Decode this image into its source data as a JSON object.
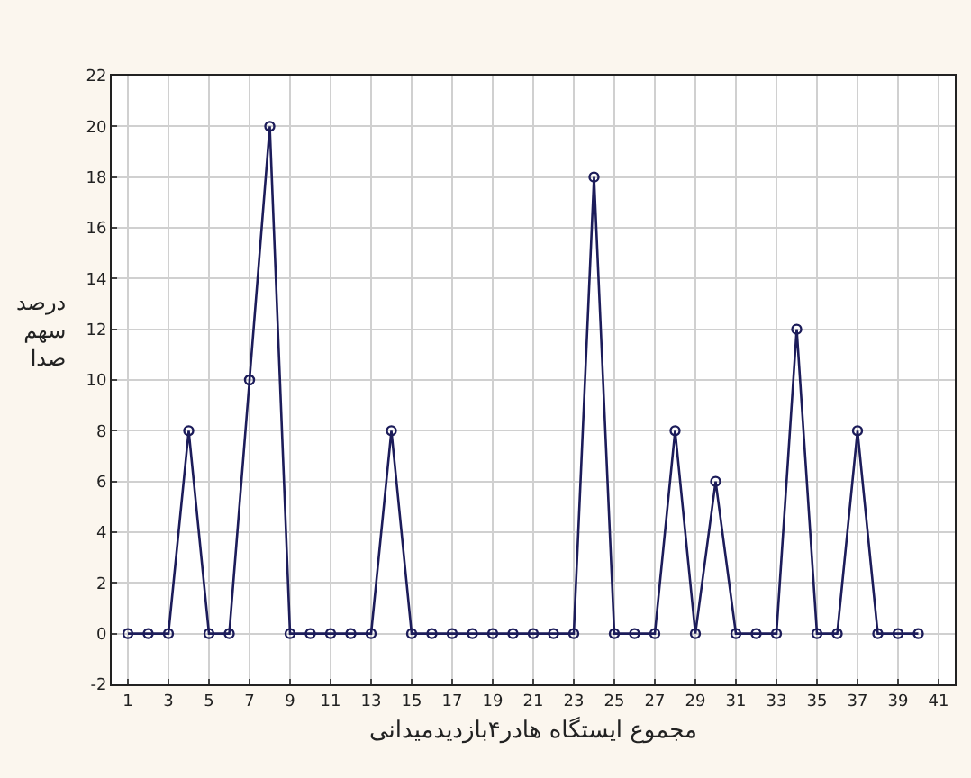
{
  "chart_data": {
    "type": "line",
    "xlabel": "مجموع ایستگاه هادر۴بازدیدمیدانی",
    "ylabel": "درصد سهم صدا",
    "x": [
      1,
      2,
      3,
      4,
      5,
      6,
      7,
      8,
      9,
      10,
      11,
      12,
      13,
      14,
      15,
      16,
      17,
      18,
      19,
      20,
      21,
      22,
      23,
      24,
      25,
      26,
      27,
      28,
      29,
      30,
      31,
      32,
      33,
      34,
      35,
      36,
      37,
      38,
      39,
      40
    ],
    "series": [
      {
        "color": "#1c1c5a",
        "values": [
          0,
          0,
          0,
          8,
          0,
          0,
          10,
          20,
          0,
          0,
          0,
          0,
          0,
          8,
          0,
          0,
          0,
          0,
          0,
          0,
          0,
          0,
          0,
          18,
          0,
          0,
          0,
          8,
          0,
          6,
          0,
          0,
          0,
          12,
          0,
          0,
          8,
          0,
          0,
          0
        ]
      }
    ],
    "xlim": [
      0.2,
      41.8
    ],
    "xticks": [
      1,
      3,
      5,
      7,
      9,
      11,
      13,
      15,
      17,
      19,
      21,
      23,
      25,
      27,
      29,
      31,
      33,
      35,
      37,
      39,
      41
    ],
    "ylim": [
      -2,
      22
    ],
    "yticks": [
      -2,
      0,
      2,
      4,
      6,
      8,
      10,
      12,
      14,
      16,
      18,
      20,
      22
    ],
    "grid": true,
    "marker": "circle",
    "line_style": "solid"
  }
}
